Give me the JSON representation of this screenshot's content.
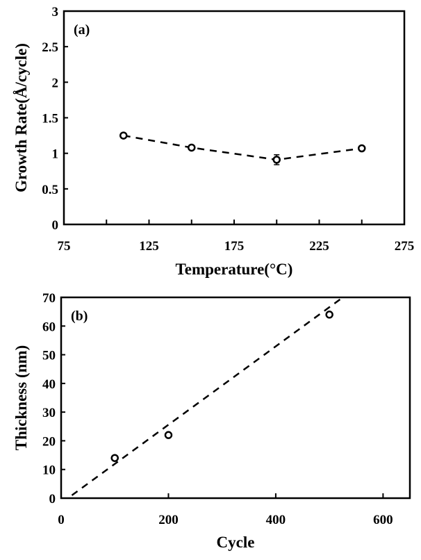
{
  "chart_data": [
    {
      "type": "line",
      "panel_label": "(a)",
      "xlabel": "Temperature(°C)",
      "ylabel": "Growth Rate(Å/cycle)",
      "xlim": [
        75,
        275
      ],
      "ylim": [
        0,
        3
      ],
      "xticks": [
        "75",
        "125",
        "175",
        "225",
        "275"
      ],
      "yticks": [
        "0",
        "0.5",
        "1",
        "1.5",
        "2",
        "2.5",
        "3"
      ],
      "grid": false,
      "marker": "open-circle",
      "line_style": "dashed",
      "series": [
        {
          "x": [
            110,
            150,
            200,
            250
          ],
          "y": [
            1.25,
            1.08,
            0.91,
            1.07
          ],
          "yerr": [
            0,
            0,
            0.07,
            0
          ]
        }
      ]
    },
    {
      "type": "scatter",
      "panel_label": "(b)",
      "xlabel": "Cycle",
      "ylabel": "Thickness (nm)",
      "xlim": [
        0,
        650
      ],
      "ylim": [
        0,
        70
      ],
      "xticks": [
        "0",
        "200",
        "400",
        "600"
      ],
      "yticks": [
        "0",
        "10",
        "20",
        "30",
        "40",
        "50",
        "60",
        "70"
      ],
      "grid": false,
      "marker": "open-circle",
      "series": [
        {
          "x": [
            100,
            200,
            500
          ],
          "y": [
            14,
            22,
            64
          ]
        }
      ],
      "fit_line": {
        "style": "dashed",
        "x": [
          20,
          525
        ],
        "y": [
          1,
          70
        ]
      }
    }
  ]
}
